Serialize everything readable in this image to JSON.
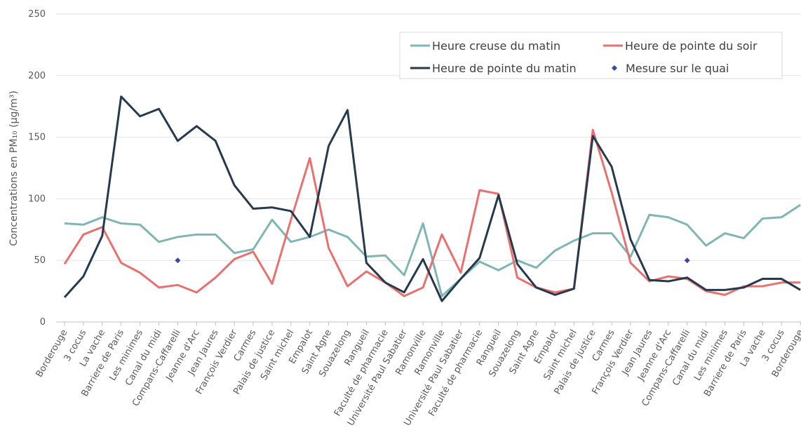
{
  "chart_data": {
    "type": "line",
    "y_label": "Concentrations en PM₁₀ (µg/m³)",
    "categories": [
      "Borderouge",
      "3 cocus",
      "La vache",
      "Barriere de Paris",
      "Les minimes",
      "Canal du midi",
      "Compans-Caffarelli",
      "Jeanne d'Arc",
      "Jean Jaures",
      "François Verdier",
      "Carmes",
      "Palais de justice",
      "Saint michel",
      "Empalot",
      "Saint Agne",
      "Souazelong",
      "Rangueil",
      "Faculté de pharmacie",
      "Université Paul Sabatier",
      "Ramonville",
      "Ramonville",
      "Université Paul Sabatier",
      "Faculté de pharmacie",
      "Rangueil",
      "Souazelong",
      "Saint Agne",
      "Empalot",
      "Saint michel",
      "Palais de justice",
      "Carmes",
      "François Verdier",
      "Jean Jaures",
      "Jeanne d'Arc",
      "Compans-Caffarelli",
      "Canal du midi",
      "Les minimes",
      "Barriere de Paris",
      "La vache",
      "3 cocus",
      "Borderouge"
    ],
    "series": [
      {
        "name": "Heure creuse du matin",
        "color": "#7fb6b5",
        "values": [
          80,
          79,
          85,
          80,
          79,
          65,
          69,
          71,
          71,
          56,
          59,
          83,
          65,
          69,
          75,
          69,
          53,
          54,
          38,
          80,
          21,
          35,
          49,
          42,
          50,
          44,
          58,
          66,
          72,
          72,
          53,
          87,
          85,
          79,
          62,
          72,
          68,
          84,
          85,
          95
        ]
      },
      {
        "name": "Heure de pointe du soir",
        "color": "#e8716f",
        "values": [
          47,
          71,
          77,
          48,
          40,
          28,
          30,
          24,
          36,
          51,
          57,
          31,
          83,
          133,
          60,
          29,
          41,
          32,
          21,
          28,
          71,
          40,
          107,
          104,
          36,
          28,
          24,
          27,
          156,
          105,
          48,
          33,
          37,
          35,
          25,
          22,
          29,
          29,
          32,
          32
        ]
      },
      {
        "name": "Heure de pointe du matin",
        "color": "#253a4e",
        "values": [
          20,
          37,
          70,
          183,
          167,
          173,
          147,
          159,
          147,
          111,
          92,
          93,
          90,
          69,
          143,
          172,
          48,
          32,
          24,
          51,
          17,
          35,
          52,
          103,
          47,
          28,
          22,
          27,
          151,
          126,
          67,
          34,
          33,
          36,
          26,
          26,
          28,
          35,
          35,
          26
        ]
      },
      {
        "name": "Mesure sur le quai",
        "color": "#3a4aa0",
        "marker_only": true,
        "values": [
          null,
          null,
          null,
          null,
          null,
          null,
          50,
          null,
          null,
          null,
          null,
          null,
          null,
          null,
          null,
          null,
          null,
          null,
          null,
          null,
          null,
          null,
          null,
          null,
          null,
          null,
          null,
          null,
          null,
          null,
          null,
          null,
          null,
          50,
          null,
          null,
          null,
          null,
          null,
          null
        ]
      }
    ],
    "ylim": [
      0,
      250
    ],
    "yticks": [
      0,
      50,
      100,
      150,
      200,
      250
    ],
    "grid": true,
    "legend": "upper right"
  }
}
